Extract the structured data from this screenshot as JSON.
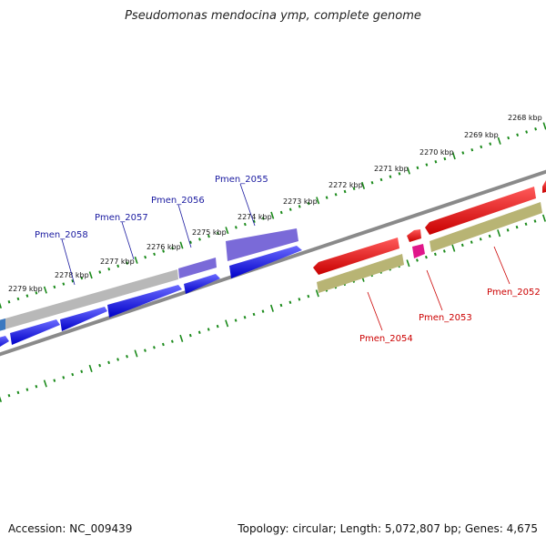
{
  "title": "Pseudomonas mendocina ymp, complete genome",
  "accession_text": "Accession: NC_009439",
  "summary_text": "Topology: circular; Length: 5,072,807 bp; Genes: 4,675",
  "colors": {
    "forward_cds": "#1010e0",
    "reverse_cds": "#e01010",
    "highlight_gene": "#6a5acd",
    "grey_block": "#b8b8b8",
    "olive_block": "#b8b474",
    "pink_block": "#e0168a",
    "backbone": "#808080",
    "tick_green": "#1a8a1a",
    "label_blue": "#1a1aa0",
    "label_red": "#cc0000"
  },
  "scale_labels": [
    "2268 kbp",
    "2269 kbp",
    "2270 kbp",
    "2271 kbp",
    "2272 kbp",
    "2273 kbp",
    "2274 kbp",
    "2275 kbp",
    "2276 kbp",
    "2277 kbp",
    "2278 kbp",
    "2279 kbp"
  ],
  "gene_labels_top": [
    "Pmen_2055",
    "Pmen_2056",
    "Pmen_2057",
    "Pmen_2058"
  ],
  "gene_labels_bottom": [
    "Pmen_2052",
    "Pmen_2053",
    "Pmen_2054"
  ]
}
